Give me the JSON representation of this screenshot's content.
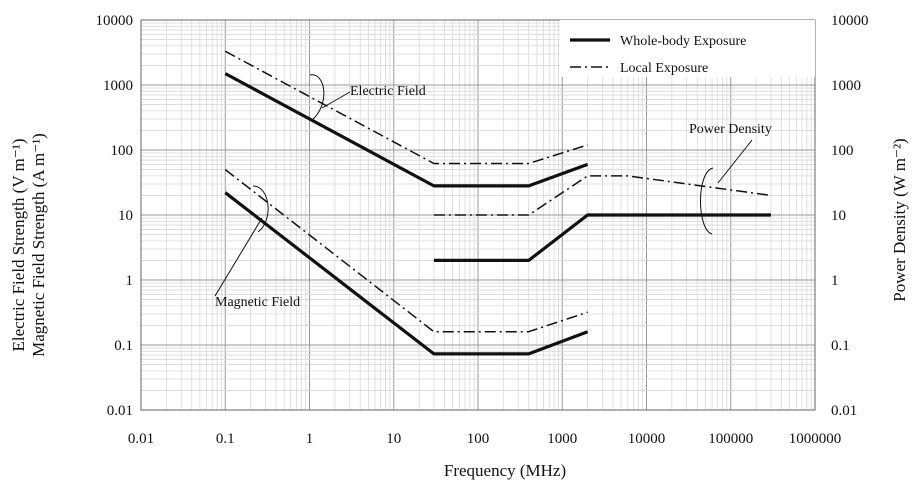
{
  "chart_data": {
    "type": "line",
    "xlabel": "Frequency (MHz)",
    "ylabel_left": [
      "Electric Field Strength (V m⁻¹)",
      "Magnetic Field Strength (A m⁻¹)"
    ],
    "ylabel_right": "Power Density (W m⁻²)",
    "x_scale": "log",
    "y_scale": "log",
    "xlim": [
      0.01,
      1000000
    ],
    "ylim": [
      0.01,
      10000
    ],
    "grid": true,
    "legend_position": "top-right",
    "x_ticks": [
      "0.01",
      "0.1",
      "1",
      "10",
      "100",
      "1000",
      "10000",
      "100000",
      "1000000"
    ],
    "y_ticks_left": [
      "0.01",
      "0.1",
      "1",
      "10",
      "100",
      "1000",
      "10000"
    ],
    "y_ticks_right": [
      "0.01",
      "0.1",
      "1",
      "10",
      "100",
      "1000",
      "10000"
    ],
    "legend": [
      {
        "label": "Whole-body Exposure",
        "style": "solid"
      },
      {
        "label": "Local Exposure",
        "style": "dashdot"
      }
    ],
    "annotations": {
      "electric": "Electric Field",
      "magnetic": "Magnetic Field",
      "power": "Power Density"
    },
    "series": [
      {
        "group": "electric",
        "style": "solid",
        "x": [
          0.1,
          30,
          400,
          2000
        ],
        "y": [
          1500,
          28,
          28,
          60
        ]
      },
      {
        "group": "electric",
        "style": "dashdot",
        "x": [
          0.1,
          30,
          400,
          2000
        ],
        "y": [
          3300,
          62,
          62,
          120
        ]
      },
      {
        "group": "magnetic",
        "style": "solid",
        "x": [
          0.1,
          30,
          400,
          2000
        ],
        "y": [
          22,
          0.073,
          0.073,
          0.16
        ]
      },
      {
        "group": "magnetic",
        "style": "dashdot",
        "x": [
          0.1,
          30,
          400,
          2000
        ],
        "y": [
          50,
          0.16,
          0.16,
          0.32
        ]
      },
      {
        "group": "power",
        "style": "solid",
        "x": [
          30,
          400,
          2000,
          300000
        ],
        "y": [
          2,
          2,
          10,
          10
        ]
      },
      {
        "group": "power",
        "style": "dashdot",
        "x": [
          30,
          400,
          2000,
          6000,
          300000
        ],
        "y": [
          10,
          10,
          40,
          40,
          20
        ]
      }
    ]
  }
}
